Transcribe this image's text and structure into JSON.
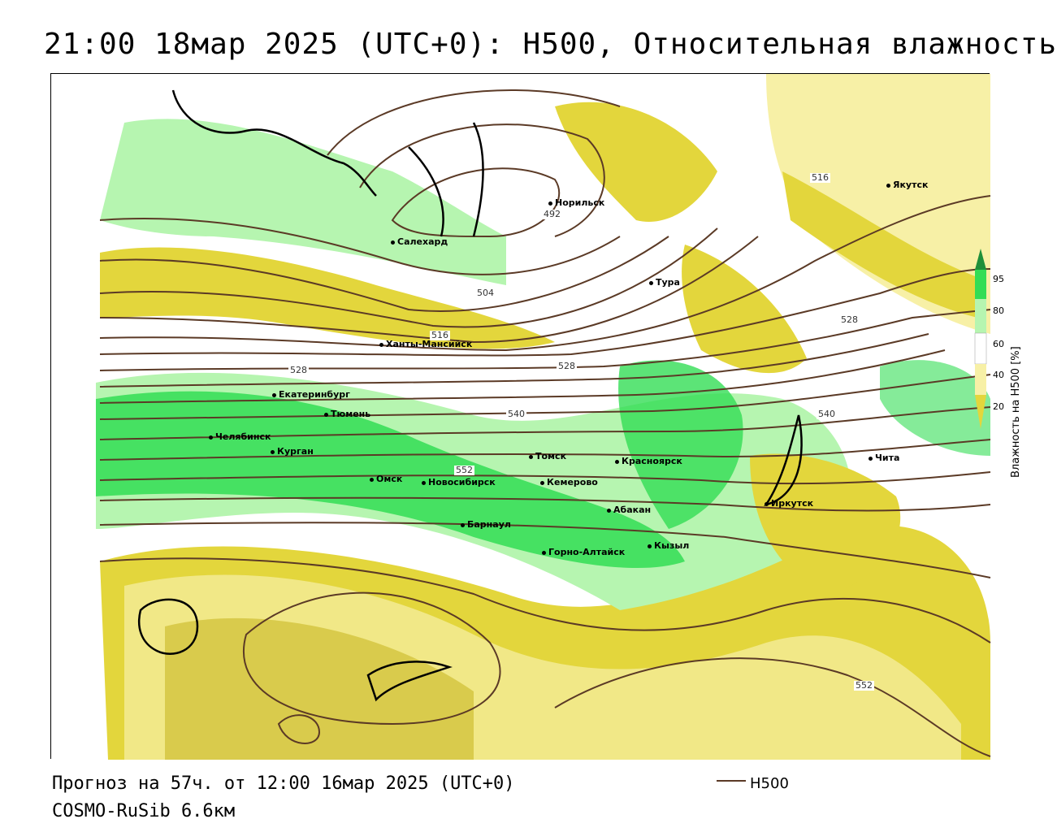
{
  "title": "21:00 18мар 2025 (UTC+0): H500, Относительная влажность",
  "footer": {
    "forecast": "Прогноз на 57ч. от 12:00 16мар 2025 (UTC+0)",
    "model": "COSMO-RuSib 6.6км"
  },
  "legend": {
    "line_label": "H500",
    "line_color": "#5b3a26"
  },
  "colorbar": {
    "title": "Влажность на H500 [%]",
    "ticks": [
      "95",
      "80",
      "60",
      "40",
      "20"
    ],
    "colors": {
      "dark_green": "#1e8f3a",
      "green": "#33dd55",
      "light_green": "#b6f5b0",
      "white": "#ffffff",
      "light_yellow": "#f7f0a6",
      "yellow": "#e3d63c",
      "olive": "#c9b825"
    }
  },
  "cities": [
    "Норильск",
    "Якутск",
    "Салехард",
    "Тура",
    "Ханты-Мансийск",
    "Екатеринбург",
    "Тюмень",
    "Челябинск",
    "Курган",
    "Омск",
    "Новосибирск",
    "Томск",
    "Кемерово",
    "Красноярск",
    "Абакан",
    "Барнаул",
    "Горно-Алтайск",
    "Кызыл",
    "Иркутск",
    "Чита"
  ],
  "isolines": [
    "492",
    "504",
    "516",
    "516",
    "528",
    "528",
    "528",
    "540",
    "540",
    "552",
    "552"
  ]
}
